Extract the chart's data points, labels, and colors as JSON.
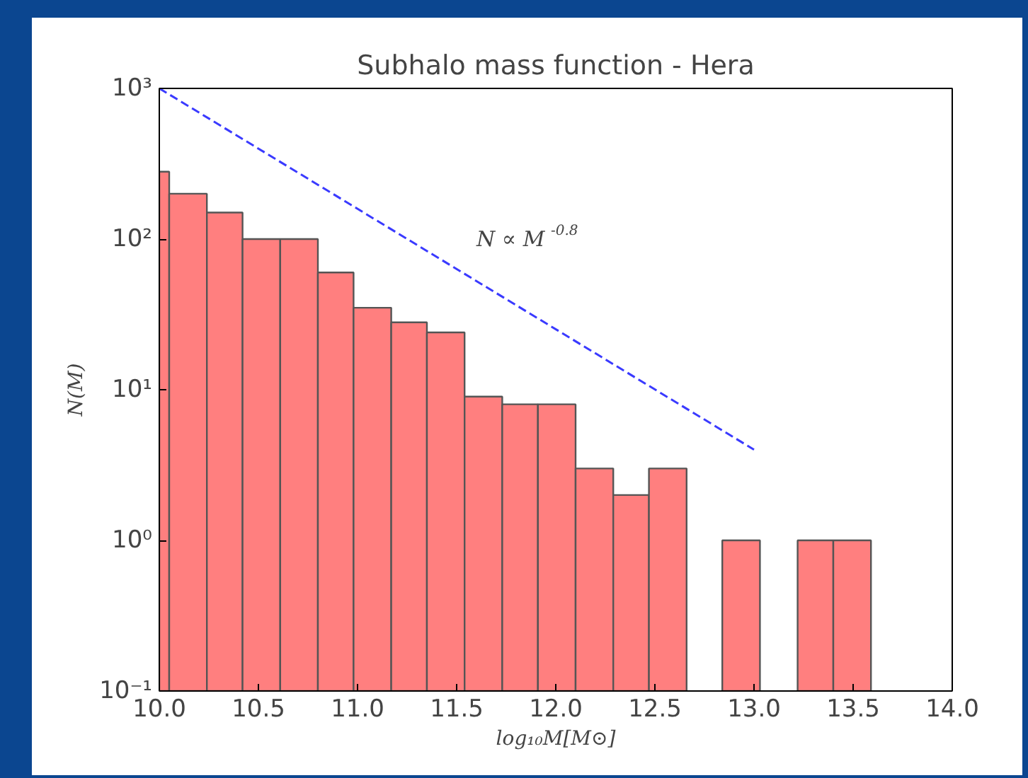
{
  "chart_data": {
    "type": "histogram",
    "title": "Subhalo mass function - Hera",
    "xlabel": "log₁₀M[M⊙]",
    "ylabel": "N(M)",
    "bins": [
      10.0,
      10.05,
      10.24,
      10.42,
      10.61,
      10.8,
      10.98,
      11.17,
      11.35,
      11.54,
      11.73,
      11.91,
      12.1,
      12.29,
      12.47,
      12.66,
      12.84,
      13.03,
      13.22,
      13.4,
      13.59
    ],
    "values": [
      280,
      200,
      150,
      100,
      100,
      60,
      35,
      28,
      24,
      9,
      8,
      8,
      3,
      2,
      3,
      null,
      1,
      null,
      1,
      1
    ],
    "color": "#ff7f7f",
    "series": [
      {
        "type": "line",
        "color": "#3a3aff",
        "line_style": "dashed",
        "x": [
          10.0,
          13.0
        ],
        "values": [
          1000,
          4
        ]
      }
    ],
    "annotations": [
      "N ∝ M$^{-0.8}$"
    ],
    "log": "y",
    "grid": false,
    "xlim": [
      10.0,
      14.0
    ],
    "ylim": [
      0.1,
      1000
    ],
    "xticks": [
      {
        "value": 10.0,
        "label": "10.0"
      },
      10.5,
      {
        "value": 11.0,
        "label": "11.0"
      },
      11.5,
      {
        "value": 12.0,
        "label": "12.0"
      },
      12.5,
      {
        "value": 13.0,
        "label": "13.0"
      },
      13.5,
      {
        "value": 14.0,
        "label": "14.0"
      }
    ],
    "yticks": [
      {
        "value": 0.1,
        "label": "10⁻¹"
      },
      {
        "value": 1,
        "label": "10⁰"
      },
      {
        "value": 10,
        "label": "10¹"
      },
      {
        "value": 100,
        "label": "10²"
      },
      {
        "value": 1000,
        "label": "10³"
      }
    ]
  }
}
